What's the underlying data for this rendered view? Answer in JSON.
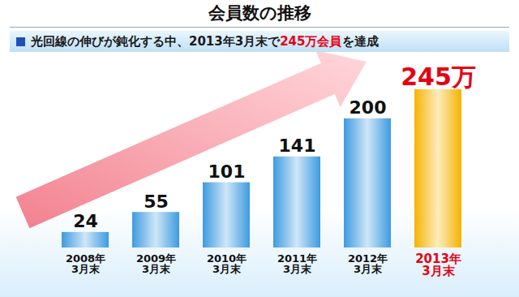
{
  "chart_data": {
    "type": "bar",
    "title": "会員数の推移",
    "subtitle": [
      {
        "text": "光回線の伸びが鈍化する中、2013年3月末で"
      },
      {
        "text": "245万会員",
        "color": "#e60012"
      },
      {
        "text": "を達成"
      }
    ],
    "categories": [
      "2008年\n3月末",
      "2009年\n3月末",
      "2010年\n3月末",
      "2011年\n3月末",
      "2012年\n3月末",
      "2013年\n3月末"
    ],
    "values": [
      24,
      55,
      101,
      141,
      200,
      245
    ],
    "value_labels": [
      "24",
      "55",
      "101",
      "141",
      "200",
      "245万"
    ],
    "colors": [
      "#3d9be0",
      "#3d9be0",
      "#3d9be0",
      "#3d9be0",
      "#3d9be0",
      "#f5b300"
    ],
    "data_labels": true,
    "tick_labels": "x"
  }
}
